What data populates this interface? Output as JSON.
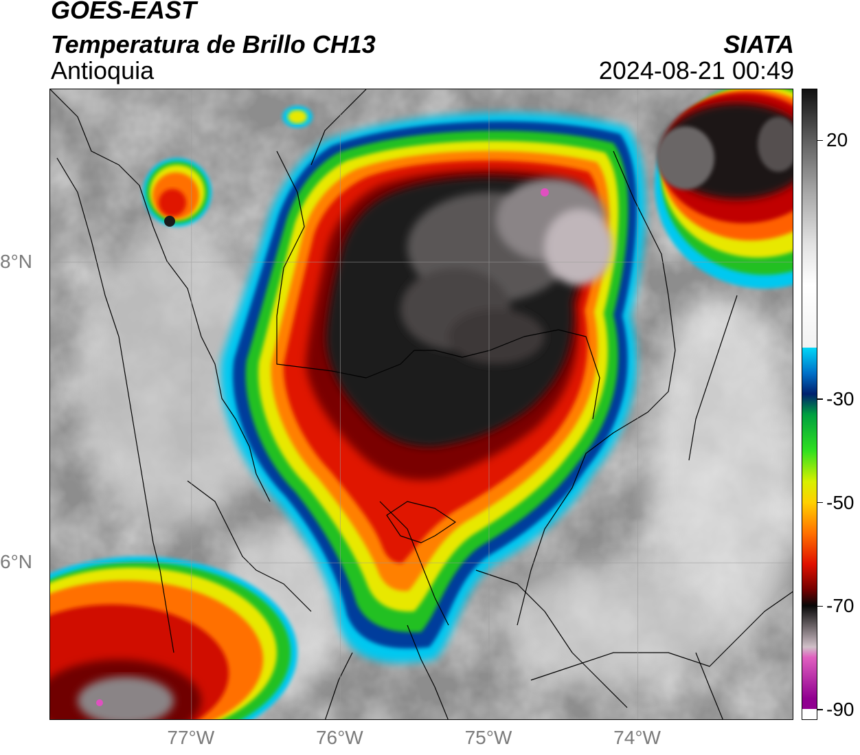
{
  "header": {
    "title_line1": "GOES-EAST",
    "title_line2": "Temperatura de Brillo CH13",
    "title_line3": "Antioquia",
    "organization": "SIATA",
    "timestamp": "2024-08-21 00:49"
  },
  "map": {
    "lon_range": [
      -77.95,
      -72.95
    ],
    "lat_range": [
      4.95,
      9.15
    ],
    "lon_ticks": [
      {
        "value": -77,
        "label": "77°W"
      },
      {
        "value": -76,
        "label": "76°W"
      },
      {
        "value": -75,
        "label": "75°W"
      },
      {
        "value": -74,
        "label": "74°W"
      }
    ],
    "lat_ticks": [
      {
        "value": 8,
        "label": "8°N"
      },
      {
        "value": 6,
        "label": "6°N"
      }
    ],
    "gridlines": true,
    "background_color": "#8a8a8a"
  },
  "colorbar": {
    "range": [
      -92,
      30
    ],
    "ticks": [
      {
        "value": 20,
        "label": "20"
      },
      {
        "value": -30,
        "label": "-30"
      },
      {
        "value": -50,
        "label": "-50"
      },
      {
        "value": -70,
        "label": "-70"
      },
      {
        "value": -90,
        "label": "-90"
      }
    ],
    "stops": [
      {
        "value": 30,
        "color": "#111111"
      },
      {
        "value": 20,
        "color": "#606060"
      },
      {
        "value": 10,
        "color": "#a8a8a8"
      },
      {
        "value": 0,
        "color": "#e2e2e2"
      },
      {
        "value": -8,
        "color": "#ffffff"
      },
      {
        "value": -20,
        "color": "#f2f2f2"
      },
      {
        "value": -20.01,
        "color": "#00d8f8"
      },
      {
        "value": -25,
        "color": "#0070c8"
      },
      {
        "value": -29,
        "color": "#00206e"
      },
      {
        "value": -33,
        "color": "#00a040"
      },
      {
        "value": -40,
        "color": "#30e020"
      },
      {
        "value": -46,
        "color": "#d8f000"
      },
      {
        "value": -50,
        "color": "#ffd000"
      },
      {
        "value": -56,
        "color": "#ff7000"
      },
      {
        "value": -62,
        "color": "#e01000"
      },
      {
        "value": -67,
        "color": "#700000"
      },
      {
        "value": -70,
        "color": "#080808"
      },
      {
        "value": -78,
        "color": "#d0c0c8"
      },
      {
        "value": -80,
        "color": "#e060c0"
      },
      {
        "value": -88,
        "color": "#900090"
      },
      {
        "value": -89.99,
        "color": "#900090"
      },
      {
        "value": -90,
        "color": "#ffffff"
      }
    ]
  }
}
